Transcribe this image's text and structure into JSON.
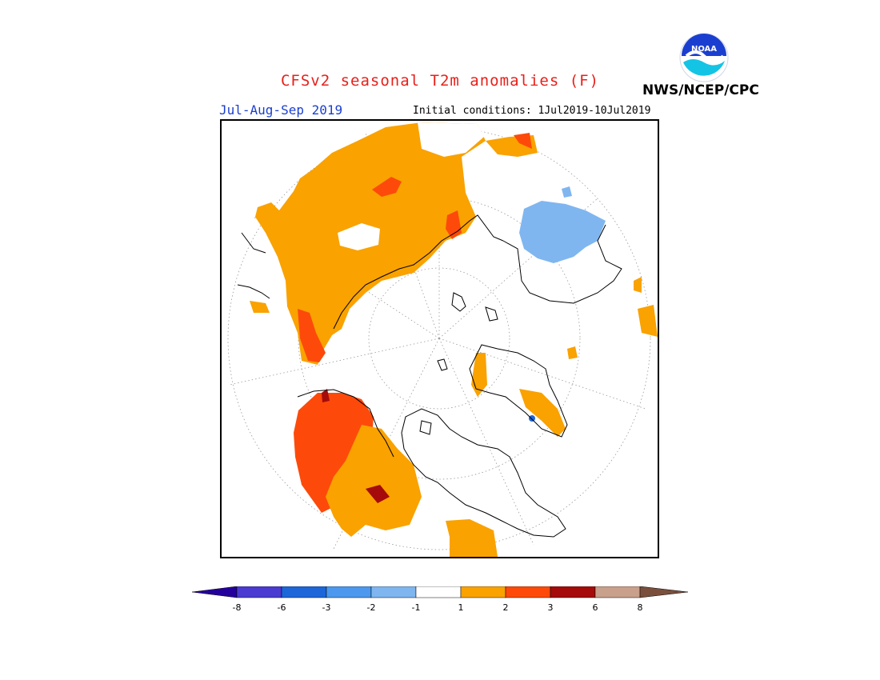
{
  "header": {
    "title": "CFSv2 seasonal T2m anomalies (F)",
    "season": "Jul-Aug-Sep 2019",
    "initial_conditions": "Initial conditions: 1Jul2019-10Jul2019",
    "agency": "NWS/NCEP/CPC",
    "logo_text": "NOAA"
  },
  "legend": {
    "ticks": [
      "-8",
      "-6",
      "-3",
      "-2",
      "-1",
      "1",
      "2",
      "3",
      "6",
      "8"
    ],
    "colors": {
      "below_-8": "#24009c",
      "-8_-6": "#4a3bd1",
      "-6_-3": "#1d66d9",
      "-3_-2": "#4b98ee",
      "-2_-1": "#7fb6f0",
      "-1_1": "#ffffff",
      "1_2": "#f9a200",
      "2_3": "#fd4a0a",
      "3_6": "#a50b0b",
      "6_8": "#c8a08b",
      "above_8": "#7a4f3c"
    }
  },
  "map": {
    "projection": "north-polar-stereographic",
    "land_outline_color": "#000000",
    "graticule_color": "#999999"
  }
}
